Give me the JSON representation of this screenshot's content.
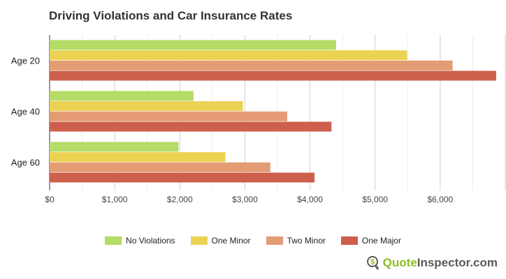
{
  "chart_data": {
    "type": "bar",
    "orientation": "horizontal",
    "title": "Driving Violations and Car Insurance Rates",
    "categories": [
      "Age 20",
      "Age 40",
      "Age 60"
    ],
    "series": [
      {
        "name": "No Violations",
        "color": "#b5dc66",
        "values": [
          4400,
          2210,
          1980
        ]
      },
      {
        "name": "One Minor",
        "color": "#ebd253",
        "values": [
          5490,
          2970,
          2700
        ]
      },
      {
        "name": "Two Minor",
        "color": "#e49c74",
        "values": [
          6190,
          3650,
          3390
        ]
      },
      {
        "name": "One Major",
        "color": "#cd5f4c",
        "values": [
          6860,
          4330,
          4070
        ]
      }
    ],
    "xlim": [
      0,
      7000
    ],
    "xticks": [
      "$0",
      "$1,000",
      "$2,000",
      "$3,000",
      "$4,000",
      "$5,000",
      "$6,000"
    ],
    "xtick_values": [
      0,
      1000,
      2000,
      3000,
      4000,
      5000,
      6000
    ],
    "grid": true,
    "legend": "bottom"
  },
  "brand": {
    "part1": "Quote",
    "part2": "Inspector.com"
  }
}
